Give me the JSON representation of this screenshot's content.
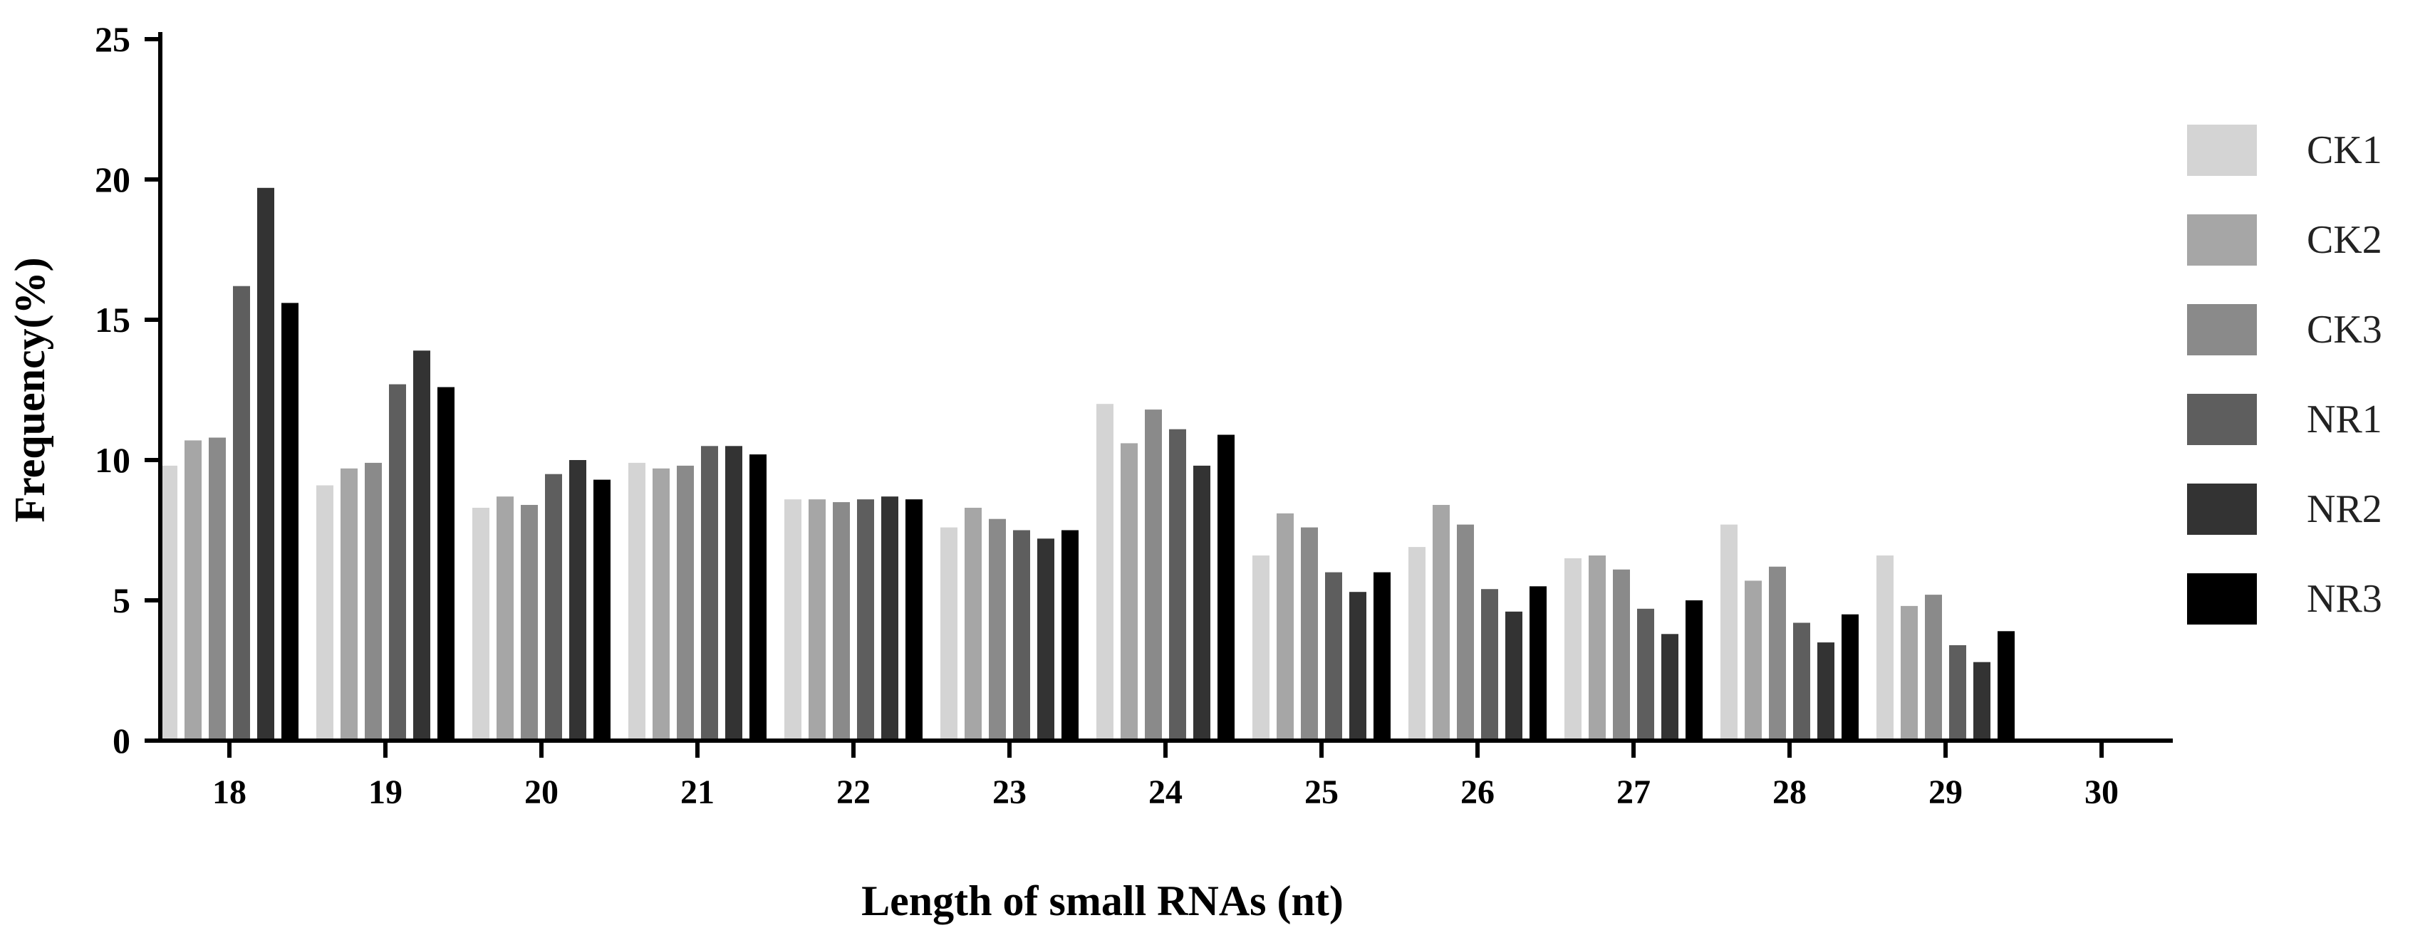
{
  "chart_data": {
    "type": "bar",
    "xlabel": "Length of small RNAs (nt)",
    "ylabel": "Frequency(%)",
    "ylim": [
      0,
      25
    ],
    "yticks": [
      0,
      5,
      10,
      15,
      20,
      25
    ],
    "categories": [
      "18",
      "19",
      "20",
      "21",
      "22",
      "23",
      "24",
      "25",
      "26",
      "27",
      "28",
      "29",
      "30"
    ],
    "legend_position": "right",
    "grid": false,
    "series": [
      {
        "name": "CK1",
        "color": "#d4d4d4",
        "values": [
          9.8,
          9.1,
          8.3,
          9.9,
          8.6,
          7.6,
          12.0,
          6.6,
          6.9,
          6.5,
          7.7,
          6.6,
          null
        ]
      },
      {
        "name": "CK2",
        "color": "#a6a6a6",
        "values": [
          10.7,
          9.7,
          8.7,
          9.7,
          8.6,
          8.3,
          10.6,
          8.1,
          8.4,
          6.6,
          5.7,
          4.8,
          null
        ]
      },
      {
        "name": "CK3",
        "color": "#8a8a8a",
        "values": [
          10.8,
          9.9,
          8.4,
          9.8,
          8.5,
          7.9,
          11.8,
          7.6,
          7.7,
          6.1,
          6.2,
          5.2,
          null
        ]
      },
      {
        "name": "NR1",
        "color": "#5e5e5e",
        "values": [
          16.2,
          12.7,
          9.5,
          10.5,
          8.6,
          7.5,
          11.1,
          6.0,
          5.4,
          4.7,
          4.2,
          3.4,
          null
        ]
      },
      {
        "name": "NR2",
        "color": "#333333",
        "values": [
          19.7,
          13.9,
          10.0,
          10.5,
          8.7,
          7.2,
          9.8,
          5.3,
          4.6,
          3.8,
          3.5,
          2.8,
          null
        ]
      },
      {
        "name": "NR3",
        "color": "#000000",
        "values": [
          15.6,
          12.6,
          9.3,
          10.2,
          8.6,
          7.5,
          10.9,
          6.0,
          5.5,
          5.0,
          4.5,
          3.9,
          null
        ]
      }
    ]
  }
}
